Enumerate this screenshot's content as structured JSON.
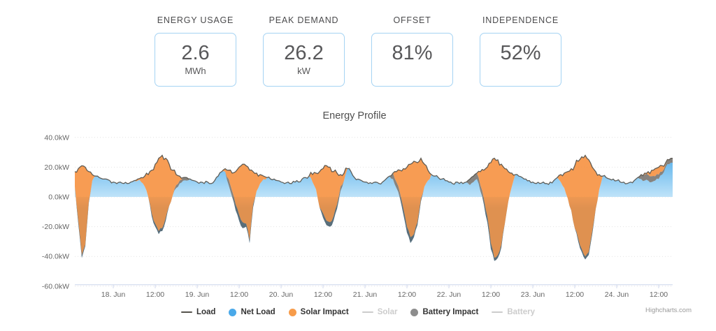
{
  "stats": [
    {
      "label": "ENERGY USAGE",
      "value": "2.6",
      "unit": "MWh"
    },
    {
      "label": "PEAK DEMAND",
      "value": "26.2",
      "unit": "kW"
    },
    {
      "label": "OFFSET",
      "value": "81%",
      "unit": ""
    },
    {
      "label": "INDEPENDENCE",
      "value": "52%",
      "unit": ""
    }
  ],
  "chart_data": {
    "type": "area",
    "title": "Energy Profile",
    "x_start": "17. Jun 13:00",
    "x_interval_hours": 1,
    "ylim": [
      -60,
      45
    ],
    "grid": "dotted-horizontal",
    "legend_position": "bottom-center",
    "yticks": [
      {
        "v": 40,
        "label": "40.0kW"
      },
      {
        "v": 20,
        "label": "20.0kW"
      },
      {
        "v": 0,
        "label": "0.0kW"
      },
      {
        "v": -20,
        "label": "-20.0kW"
      },
      {
        "v": -40,
        "label": "-40.0kW"
      },
      {
        "v": -60,
        "label": "-60.0kW"
      }
    ],
    "xticks": [
      {
        "i": 11,
        "label": "18. Jun"
      },
      {
        "i": 23,
        "label": "12:00"
      },
      {
        "i": 35,
        "label": "19. Jun"
      },
      {
        "i": 47,
        "label": "12:00"
      },
      {
        "i": 59,
        "label": "20. Jun"
      },
      {
        "i": 71,
        "label": "12:00"
      },
      {
        "i": 83,
        "label": "21. Jun"
      },
      {
        "i": 95,
        "label": "12:00"
      },
      {
        "i": 107,
        "label": "22. Jun"
      },
      {
        "i": 119,
        "label": "12:00"
      },
      {
        "i": 131,
        "label": "23. Jun"
      },
      {
        "i": 143,
        "label": "12:00"
      },
      {
        "i": 155,
        "label": "24. Jun"
      },
      {
        "i": 167,
        "label": "12:00"
      }
    ],
    "series": {
      "load": {
        "name": "Load",
        "unit": "kW",
        "values": [
          17,
          19,
          21,
          20,
          17,
          15,
          14,
          13,
          12,
          12,
          11,
          10,
          9,
          10,
          9,
          9,
          10,
          11,
          12,
          13,
          14,
          15,
          18,
          22,
          26,
          28,
          26,
          22,
          18,
          15,
          14,
          13,
          13,
          12,
          11,
          10,
          10,
          9,
          10,
          9,
          11,
          14,
          17,
          19,
          18,
          16,
          17,
          20,
          22,
          21,
          18,
          17,
          16,
          15,
          14,
          13,
          12,
          12,
          11,
          10,
          9,
          10,
          9,
          10,
          10,
          12,
          13,
          14,
          15,
          16,
          17,
          19,
          21,
          20,
          17,
          16,
          15,
          16,
          19,
          17,
          13,
          12,
          11,
          10,
          9,
          9,
          10,
          9,
          10,
          12,
          14,
          16,
          17,
          18,
          19,
          20,
          22,
          24,
          23,
          26,
          22,
          18,
          15,
          14,
          13,
          12,
          11,
          10,
          9,
          10,
          9,
          9,
          10,
          12,
          14,
          16,
          17,
          18,
          20,
          23,
          26,
          25,
          22,
          19,
          17,
          16,
          15,
          14,
          13,
          12,
          11,
          10,
          9,
          9,
          10,
          9,
          10,
          11,
          13,
          15,
          16,
          17,
          19,
          21,
          24,
          27,
          28,
          25,
          20,
          17,
          15,
          14,
          13,
          12,
          12,
          11,
          10,
          10,
          9,
          10,
          11,
          13,
          15,
          16,
          17,
          18,
          19,
          20,
          21,
          23,
          25,
          26
        ]
      },
      "net_load": {
        "name": "Net Load",
        "unit": "kW",
        "values": [
          7,
          -18,
          -41,
          -33,
          -4,
          11,
          14,
          13,
          12,
          12,
          11,
          10,
          9,
          10,
          9,
          9,
          10,
          11,
          11,
          10,
          7,
          0,
          -13,
          -20,
          -25,
          -23,
          -16,
          -6,
          1,
          6,
          9,
          11,
          11,
          12,
          11,
          10,
          10,
          9,
          10,
          9,
          11,
          14,
          17,
          17,
          8,
          0,
          -9,
          -16,
          -21,
          -20,
          -31,
          -7,
          4,
          9,
          12,
          13,
          12,
          12,
          11,
          10,
          9,
          10,
          9,
          10,
          10,
          12,
          13,
          14,
          10,
          5,
          -7,
          -14,
          -19,
          -20,
          -16,
          -8,
          4,
          11,
          19,
          17,
          13,
          12,
          11,
          10,
          9,
          9,
          10,
          9,
          10,
          12,
          14,
          12,
          6,
          -1,
          -12,
          -24,
          -31,
          -27,
          -19,
          -3,
          7,
          11,
          15,
          14,
          13,
          12,
          11,
          10,
          9,
          10,
          9,
          9,
          10,
          8,
          10,
          12,
          4,
          -5,
          -17,
          -35,
          -43,
          -41,
          -34,
          -18,
          -3,
          7,
          15,
          14,
          13,
          12,
          11,
          10,
          9,
          9,
          10,
          9,
          10,
          11,
          13,
          10,
          6,
          -1,
          -9,
          -21,
          -30,
          -37,
          -42,
          -39,
          -25,
          -8,
          5,
          14,
          13,
          12,
          12,
          11,
          10,
          10,
          9,
          10,
          11,
          13,
          12,
          11,
          11,
          10,
          11,
          12,
          15,
          20,
          22,
          23
        ]
      },
      "solar_impact": {
        "name": "Solar Impact",
        "unit": "kW",
        "values": [
          10,
          35,
          60,
          52,
          20,
          4,
          0,
          0,
          0,
          0,
          0,
          0,
          0,
          0,
          0,
          0,
          0,
          0,
          1,
          3,
          7,
          15,
          29,
          40,
          49,
          49,
          40,
          28,
          17,
          7,
          3,
          0,
          0,
          0,
          0,
          0,
          0,
          0,
          0,
          0,
          0,
          0,
          0,
          2,
          6,
          12,
          22,
          32,
          39,
          39,
          47,
          22,
          12,
          6,
          2,
          0,
          0,
          0,
          0,
          0,
          0,
          0,
          0,
          0,
          0,
          0,
          0,
          0,
          5,
          11,
          21,
          30,
          37,
          37,
          30,
          21,
          11,
          5,
          0,
          0,
          0,
          0,
          0,
          0,
          0,
          0,
          0,
          0,
          0,
          0,
          0,
          0,
          7,
          15,
          27,
          40,
          49,
          49,
          40,
          27,
          15,
          7,
          0,
          0,
          0,
          0,
          0,
          0,
          0,
          0,
          0,
          0,
          0,
          0,
          0,
          0,
          9,
          19,
          33,
          54,
          67,
          64,
          54,
          37,
          20,
          9,
          0,
          0,
          0,
          0,
          0,
          0,
          0,
          0,
          0,
          0,
          0,
          0,
          0,
          5,
          10,
          18,
          28,
          40,
          52,
          62,
          68,
          62,
          45,
          25,
          10,
          0,
          0,
          0,
          0,
          0,
          0,
          0,
          0,
          0,
          0,
          0,
          0,
          1,
          2,
          4,
          5,
          5,
          4,
          1,
          0,
          0
        ]
      },
      "battery_impact": {
        "name": "Battery Impact",
        "unit": "kW",
        "values": [
          0,
          2,
          2,
          1,
          1,
          0,
          0,
          0,
          0,
          0,
          0,
          0,
          0,
          0,
          0,
          0,
          0,
          0,
          0,
          0,
          0,
          0,
          2,
          2,
          2,
          2,
          2,
          0,
          0,
          2,
          2,
          2,
          2,
          0,
          0,
          0,
          0,
          0,
          0,
          0,
          0,
          0,
          0,
          0,
          4,
          4,
          4,
          4,
          4,
          2,
          2,
          2,
          0,
          0,
          0,
          0,
          0,
          0,
          0,
          0,
          0,
          0,
          0,
          0,
          0,
          0,
          0,
          0,
          0,
          0,
          0,
          3,
          3,
          3,
          3,
          3,
          3,
          0,
          0,
          0,
          0,
          0,
          0,
          0,
          0,
          0,
          0,
          0,
          0,
          0,
          0,
          4,
          4,
          4,
          4,
          4,
          4,
          2,
          2,
          2,
          0,
          0,
          0,
          0,
          0,
          0,
          0,
          0,
          0,
          0,
          0,
          0,
          0,
          4,
          4,
          4,
          4,
          4,
          4,
          4,
          2,
          2,
          2,
          0,
          0,
          0,
          0,
          0,
          0,
          0,
          0,
          0,
          0,
          0,
          0,
          0,
          0,
          0,
          0,
          0,
          0,
          0,
          0,
          0,
          2,
          2,
          2,
          2,
          2,
          0,
          0,
          0,
          0,
          0,
          0,
          0,
          0,
          0,
          0,
          0,
          0,
          0,
          3,
          4,
          4,
          4,
          3,
          3,
          2,
          2,
          3,
          3
        ]
      }
    },
    "legend": [
      {
        "label": "Load",
        "swatch": "line",
        "color": "#55524c",
        "enabled": true
      },
      {
        "label": "Net Load",
        "swatch": "circle",
        "color": "#4aa9e9",
        "enabled": true
      },
      {
        "label": "Solar Impact",
        "swatch": "circle",
        "color": "#f79c4a",
        "enabled": true
      },
      {
        "label": "Solar",
        "swatch": "line",
        "color": "#cccccc",
        "enabled": false
      },
      {
        "label": "Battery Impact",
        "swatch": "circle",
        "color": "#8d8d8d",
        "enabled": true
      },
      {
        "label": "Battery",
        "swatch": "line",
        "color": "#cccccc",
        "enabled": false
      }
    ],
    "credit": "Highcharts.com",
    "colors": {
      "net_area_top": "#4face9",
      "net_area_zero": "#bfe3f9",
      "net_area_below": "#5fb2ec",
      "solar_area": "#f68b35",
      "solar_opacity": 0.85,
      "battery_area": "#57534e",
      "battery_opacity": 0.72,
      "load_line": "#55524c",
      "grid_line": "#e2e2e2",
      "axis_line": "#ccd6eb",
      "tick_text": "#666666"
    }
  }
}
